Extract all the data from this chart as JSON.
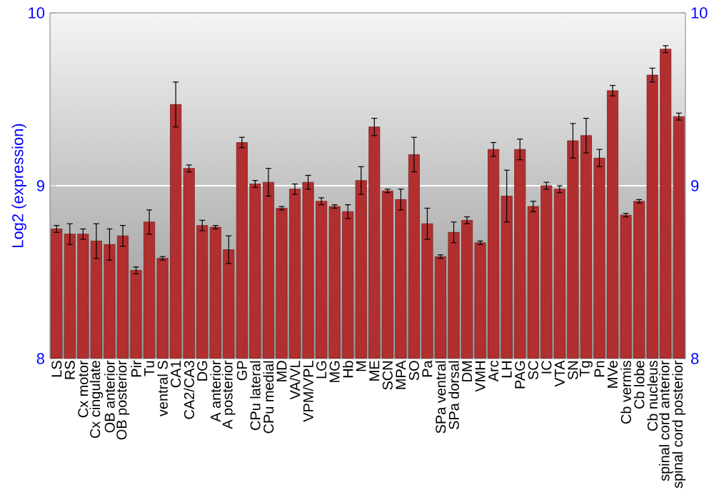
{
  "chart_data": {
    "type": "bar",
    "ylabel": "Log2 (expression)",
    "categories": [
      "LS",
      "RS",
      "Cx motor",
      "Cx cingulate",
      "OB anterior",
      "OB posterior",
      "Pir",
      "Tu",
      "ventral S",
      "CA1",
      "CA2/CA3",
      "DG",
      "A anterior",
      "A posterior",
      "GP",
      "CPu lateral",
      "CPu medial",
      "MD",
      "VA/VL",
      "VPM/VPL",
      "LG",
      "MG",
      "Hb",
      "M",
      "ME",
      "SCN",
      "MPA",
      "SO",
      "Pa",
      "SPa ventral",
      "SPa dorsal",
      "DM",
      "VMH",
      "Arc",
      "LH",
      "PAG",
      "SC",
      "IC",
      "VTA",
      "SN",
      "Tg",
      "Pn",
      "MVe",
      "Cb vermis",
      "Cb lobe",
      "Cb nucleus",
      "spinal cord anterior",
      "spinal cord posterior"
    ],
    "values": [
      8.75,
      8.72,
      8.72,
      8.68,
      8.66,
      8.71,
      8.51,
      8.79,
      8.58,
      9.47,
      9.1,
      8.77,
      8.76,
      8.63,
      9.25,
      9.01,
      9.02,
      8.87,
      8.98,
      9.02,
      8.91,
      8.88,
      8.85,
      9.03,
      9.34,
      8.97,
      8.92,
      9.18,
      8.78,
      8.59,
      8.73,
      8.8,
      8.67,
      9.21,
      8.94,
      9.21,
      8.88,
      9.0,
      8.98,
      9.26,
      9.29,
      9.16,
      9.55,
      8.83,
      8.91,
      9.64,
      9.79,
      9.4
    ],
    "errors": [
      0.02,
      0.06,
      0.03,
      0.1,
      0.09,
      0.06,
      0.02,
      0.07,
      0.01,
      0.13,
      0.02,
      0.03,
      0.01,
      0.08,
      0.03,
      0.02,
      0.08,
      0.01,
      0.03,
      0.04,
      0.02,
      0.01,
      0.04,
      0.08,
      0.05,
      0.01,
      0.06,
      0.1,
      0.09,
      0.01,
      0.06,
      0.02,
      0.01,
      0.04,
      0.15,
      0.06,
      0.03,
      0.02,
      0.02,
      0.1,
      0.1,
      0.05,
      0.03,
      0.01,
      0.01,
      0.04,
      0.02,
      0.02
    ],
    "color": "#b22f2f",
    "ylim": [
      8,
      10
    ],
    "yticks": [
      8,
      9,
      10
    ],
    "y2lim": [
      8,
      10
    ],
    "y2ticks": [
      8,
      9,
      10
    ],
    "grid": "y"
  }
}
